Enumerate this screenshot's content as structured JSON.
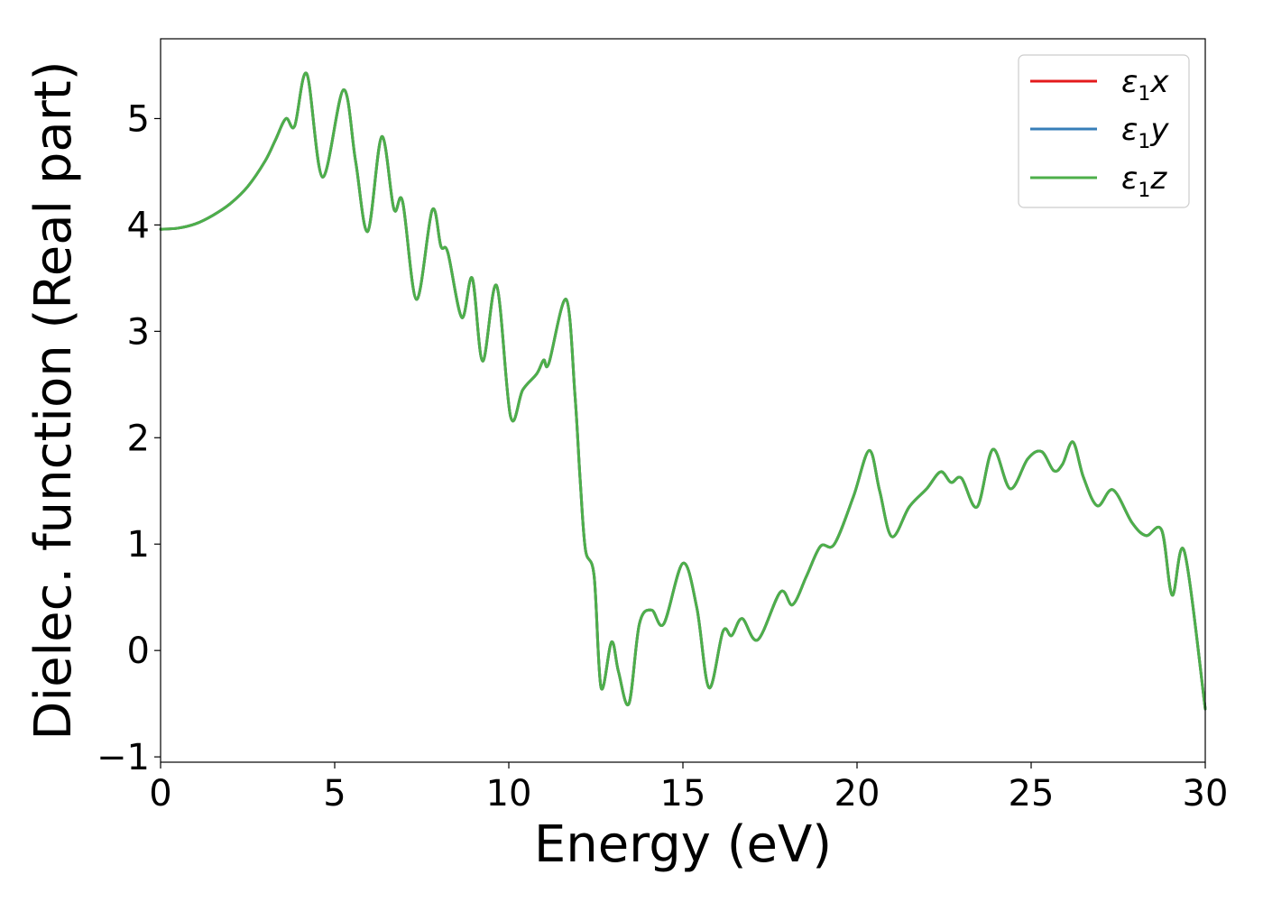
{
  "chart_data": {
    "type": "line",
    "title": "",
    "xlabel": "Energy (eV)",
    "ylabel": "Dielec. function (Real part)",
    "xlim": [
      0,
      30
    ],
    "ylim": [
      -1.05,
      5.75
    ],
    "x_ticks": [
      0,
      5,
      10,
      15,
      20,
      25,
      30
    ],
    "y_ticks": [
      -1,
      0,
      1,
      2,
      3,
      4,
      5
    ],
    "x_tick_labels": [
      "0",
      "5",
      "10",
      "15",
      "20",
      "25",
      "30"
    ],
    "y_tick_labels": [
      "−1",
      "0",
      "1",
      "2",
      "3",
      "4",
      "5"
    ],
    "grid": false,
    "legend_position": "top-right",
    "x": [
      0,
      0.5,
      1.0,
      1.5,
      2.0,
      2.5,
      3.0,
      3.3,
      3.6,
      3.85,
      4.2,
      4.65,
      5.25,
      5.6,
      5.95,
      6.35,
      6.7,
      6.95,
      7.35,
      7.8,
      8.05,
      8.25,
      8.65,
      8.95,
      9.25,
      9.65,
      10.05,
      10.4,
      10.8,
      11.0,
      11.15,
      11.65,
      11.9,
      12.05,
      12.2,
      12.45,
      12.65,
      12.95,
      13.15,
      13.45,
      13.75,
      14.1,
      14.45,
      15.0,
      15.4,
      15.75,
      16.15,
      16.4,
      16.7,
      17.15,
      17.8,
      18.15,
      18.55,
      18.95,
      19.35,
      19.9,
      20.35,
      20.65,
      21.0,
      21.5,
      22.0,
      22.4,
      22.7,
      23.0,
      23.45,
      23.9,
      24.4,
      24.9,
      25.3,
      25.65,
      25.9,
      26.2,
      26.5,
      26.9,
      27.35,
      27.9,
      28.3,
      28.75,
      29.05,
      29.4,
      30.0
    ],
    "series": [
      {
        "name": "ε₁x",
        "color": "#e41a1c",
        "y": [
          3.96,
          3.97,
          4.01,
          4.09,
          4.2,
          4.36,
          4.6,
          4.8,
          5.0,
          4.93,
          5.42,
          4.45,
          5.27,
          4.6,
          3.94,
          4.83,
          4.15,
          4.22,
          3.3,
          4.14,
          3.8,
          3.74,
          3.13,
          3.5,
          2.72,
          3.43,
          2.2,
          2.45,
          2.6,
          2.73,
          2.7,
          3.3,
          2.4,
          1.6,
          0.95,
          0.7,
          -0.35,
          0.08,
          -0.2,
          -0.5,
          0.25,
          0.38,
          0.25,
          0.82,
          0.4,
          -0.35,
          0.18,
          0.14,
          0.3,
          0.1,
          0.55,
          0.43,
          0.7,
          0.98,
          1.0,
          1.45,
          1.88,
          1.5,
          1.07,
          1.35,
          1.52,
          1.68,
          1.58,
          1.62,
          1.35,
          1.89,
          1.52,
          1.8,
          1.87,
          1.69,
          1.75,
          1.96,
          1.63,
          1.36,
          1.51,
          1.2,
          1.08,
          1.13,
          0.52,
          0.93,
          -0.55
        ]
      },
      {
        "name": "ε₁y",
        "color": "#377eb8",
        "y": [
          3.96,
          3.97,
          4.01,
          4.09,
          4.2,
          4.36,
          4.6,
          4.8,
          5.0,
          4.93,
          5.42,
          4.45,
          5.27,
          4.6,
          3.94,
          4.83,
          4.15,
          4.22,
          3.3,
          4.14,
          3.8,
          3.74,
          3.13,
          3.5,
          2.72,
          3.43,
          2.2,
          2.45,
          2.6,
          2.73,
          2.7,
          3.3,
          2.4,
          1.6,
          0.95,
          0.7,
          -0.35,
          0.08,
          -0.2,
          -0.5,
          0.25,
          0.38,
          0.25,
          0.82,
          0.4,
          -0.35,
          0.18,
          0.14,
          0.3,
          0.1,
          0.55,
          0.43,
          0.7,
          0.98,
          1.0,
          1.45,
          1.88,
          1.5,
          1.07,
          1.35,
          1.52,
          1.68,
          1.58,
          1.62,
          1.35,
          1.89,
          1.52,
          1.8,
          1.87,
          1.69,
          1.75,
          1.96,
          1.63,
          1.36,
          1.51,
          1.2,
          1.08,
          1.13,
          0.52,
          0.93,
          -0.55
        ]
      },
      {
        "name": "ε₁z",
        "color": "#4daf4a",
        "y": [
          3.96,
          3.97,
          4.01,
          4.09,
          4.2,
          4.36,
          4.6,
          4.8,
          5.0,
          4.93,
          5.42,
          4.45,
          5.27,
          4.6,
          3.94,
          4.83,
          4.15,
          4.22,
          3.3,
          4.14,
          3.8,
          3.74,
          3.13,
          3.5,
          2.72,
          3.43,
          2.2,
          2.45,
          2.6,
          2.73,
          2.7,
          3.3,
          2.4,
          1.6,
          0.95,
          0.7,
          -0.35,
          0.08,
          -0.2,
          -0.5,
          0.25,
          0.38,
          0.25,
          0.82,
          0.4,
          -0.35,
          0.18,
          0.14,
          0.3,
          0.1,
          0.55,
          0.43,
          0.7,
          0.98,
          1.0,
          1.45,
          1.88,
          1.5,
          1.07,
          1.35,
          1.52,
          1.68,
          1.58,
          1.62,
          1.35,
          1.89,
          1.52,
          1.8,
          1.87,
          1.69,
          1.75,
          1.96,
          1.63,
          1.36,
          1.51,
          1.2,
          1.08,
          1.13,
          0.52,
          0.93,
          -0.55
        ]
      }
    ],
    "legend": [
      {
        "symbol": "ε",
        "sub": "1",
        "axis": "x",
        "color": "#e41a1c"
      },
      {
        "symbol": "ε",
        "sub": "1",
        "axis": "y",
        "color": "#377eb8"
      },
      {
        "symbol": "ε",
        "sub": "1",
        "axis": "z",
        "color": "#4daf4a"
      }
    ]
  }
}
